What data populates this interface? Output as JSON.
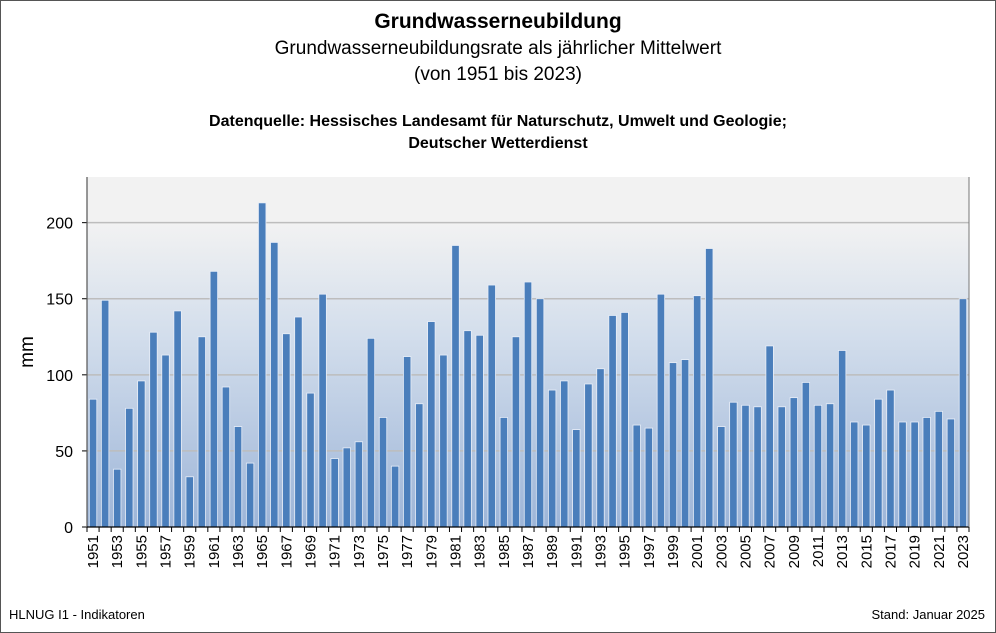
{
  "header": {
    "title": "Grundwasserneubildung",
    "subtitle": "Grundwasserneubildungsrate als jährlicher Mittelwert",
    "period": "(von 1951 bis 2023)",
    "source_line1": "Datenquelle: Hessisches Landesamt für Naturschutz, Umwelt und Geologie;",
    "source_line2": "Deutscher Wetterdienst"
  },
  "footer": {
    "left": "HLNUG I1 - Indikatoren",
    "right": "Stand: Januar 2025"
  },
  "chart_data": {
    "type": "bar",
    "title": "Grundwasserneubildung",
    "ylabel": "mm",
    "xlabel": "",
    "ylim": [
      0,
      230
    ],
    "yticks": [
      0,
      50,
      100,
      150,
      200
    ],
    "grid": true,
    "bar_color": "#4a7ebb",
    "categories": [
      1951,
      1952,
      1953,
      1954,
      1955,
      1956,
      1957,
      1958,
      1959,
      1960,
      1961,
      1962,
      1963,
      1964,
      1965,
      1966,
      1967,
      1968,
      1969,
      1970,
      1971,
      1972,
      1973,
      1974,
      1975,
      1976,
      1977,
      1978,
      1979,
      1980,
      1981,
      1982,
      1983,
      1984,
      1985,
      1986,
      1987,
      1988,
      1989,
      1990,
      1991,
      1992,
      1993,
      1994,
      1995,
      1996,
      1997,
      1998,
      1999,
      2000,
      2001,
      2002,
      2003,
      2004,
      2005,
      2006,
      2007,
      2008,
      2009,
      2010,
      2011,
      2012,
      2013,
      2014,
      2015,
      2016,
      2017,
      2018,
      2019,
      2020,
      2021,
      2022,
      2023
    ],
    "values": [
      84,
      149,
      38,
      78,
      96,
      128,
      113,
      142,
      33,
      125,
      168,
      92,
      66,
      42,
      213,
      187,
      127,
      138,
      88,
      153,
      45,
      52,
      56,
      124,
      72,
      40,
      112,
      81,
      135,
      113,
      185,
      129,
      126,
      159,
      72,
      125,
      161,
      150,
      90,
      96,
      64,
      94,
      104,
      139,
      141,
      67,
      65,
      153,
      108,
      110,
      152,
      183,
      66,
      82,
      80,
      79,
      119,
      79,
      85,
      95,
      80,
      81,
      116,
      69,
      67,
      84,
      90,
      69,
      69,
      72,
      76,
      71,
      150
    ]
  }
}
